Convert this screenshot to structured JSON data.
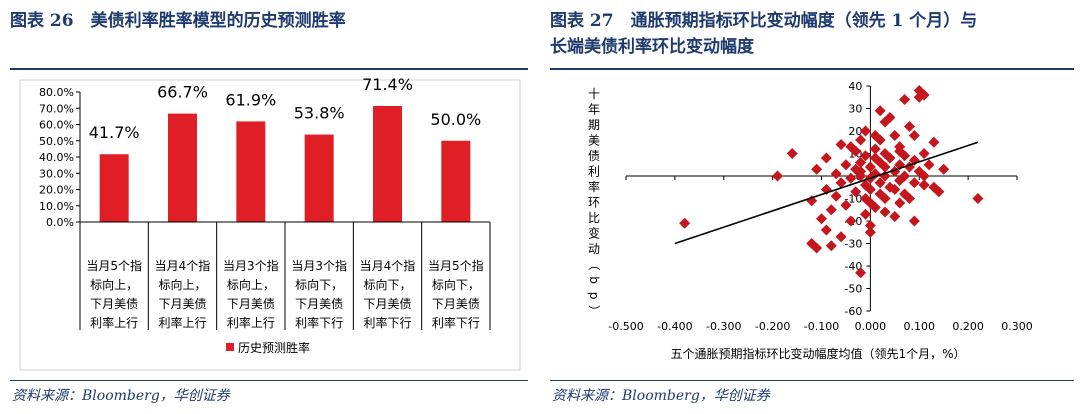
{
  "left": {
    "title": "图表 26　美债利率胜率模型的历史预测胜率",
    "source": "资料来源：Bloomberg，华创证券",
    "chart_data": {
      "type": "bar",
      "categories": [
        [
          "当月5个指",
          "标向上，",
          "下月美债",
          "利率上行"
        ],
        [
          "当月4个指",
          "标向上，",
          "下月美债",
          "利率上行"
        ],
        [
          "当月3个指",
          "标向上，",
          "下月美债",
          "利率上行"
        ],
        [
          "当月3个指",
          "标向下，",
          "下月美债",
          "利率下行"
        ],
        [
          "当月4个指",
          "标向下，",
          "下月美债",
          "利率下行"
        ],
        [
          "当月5个指",
          "标向下，",
          "下月美债",
          "利率下行"
        ]
      ],
      "series": [
        {
          "name": "历史预测胜率",
          "values": [
            41.7,
            66.7,
            61.9,
            53.8,
            71.4,
            50.0
          ]
        }
      ],
      "data_labels": [
        "41.7%",
        "66.7%",
        "61.9%",
        "53.8%",
        "71.4%",
        "50.0%"
      ],
      "y_ticks": [
        "0.0%",
        "10.0%",
        "20.0%",
        "30.0%",
        "40.0%",
        "50.0%",
        "60.0%",
        "70.0%",
        "80.0%"
      ],
      "ylim": [
        0,
        80
      ],
      "color": "#e01e25",
      "legend_position": "bottom"
    }
  },
  "right": {
    "title_line1": "图表 27　通胀预期指标环比变动幅度（领先 1 个月）与",
    "title_line2": "长端美债利率环比变动幅度",
    "source": "资料来源：Bloomberg，华创证券",
    "chart_data": {
      "type": "scatter",
      "xlabel": "五个通胀预期指标环比变动幅度均值（领先1个月，%）",
      "ylabel": "十年期美债利率环比变动（bp）",
      "xlim": [
        -0.5,
        0.3
      ],
      "ylim": [
        -60,
        40
      ],
      "x_ticks": [
        "-0.500",
        "-0.400",
        "-0.300",
        "-0.200",
        "-0.100",
        "0.000",
        "0.100",
        "0.200",
        "0.300"
      ],
      "y_ticks": [
        "40",
        "30",
        "20",
        "10",
        "0",
        "-10",
        "-20",
        "-30",
        "-40",
        "-50",
        "-60"
      ],
      "marker_color": "#c4161c",
      "trendline": {
        "x": [
          -0.4,
          0.22
        ],
        "y": [
          -30,
          15
        ]
      },
      "points": [
        [
          0.1,
          38
        ],
        [
          0.11,
          36
        ],
        [
          0.1,
          35
        ],
        [
          0.07,
          34
        ],
        [
          0.02,
          29
        ],
        [
          0.04,
          26
        ],
        [
          0.03,
          24
        ],
        [
          0.08,
          22
        ],
        [
          -0.01,
          20
        ],
        [
          0.01,
          18
        ],
        [
          0.05,
          18
        ],
        [
          0.09,
          18
        ],
        [
          -0.02,
          16
        ],
        [
          0.02,
          16
        ],
        [
          0.13,
          15
        ],
        [
          -0.06,
          14
        ],
        [
          -0.04,
          13
        ],
        [
          0.06,
          13
        ],
        [
          -0.16,
          10
        ],
        [
          0.01,
          12
        ],
        [
          -0.03,
          11
        ],
        [
          0.06,
          11
        ],
        [
          0.11,
          10
        ],
        [
          0.03,
          10
        ],
        [
          -0.01,
          9
        ],
        [
          0.07,
          9
        ],
        [
          -0.09,
          8
        ],
        [
          0.01,
          8
        ],
        [
          0.04,
          8
        ],
        [
          0.09,
          7
        ],
        [
          -0.02,
          6
        ],
        [
          0.02,
          6
        ],
        [
          -0.05,
          5
        ],
        [
          0.06,
          5
        ],
        [
          0.12,
          5
        ],
        [
          0.0,
          4
        ],
        [
          0.03,
          4
        ],
        [
          0.08,
          4
        ],
        [
          -0.11,
          3
        ],
        [
          0.15,
          3
        ],
        [
          -0.02,
          2
        ],
        [
          0.05,
          2
        ],
        [
          0.1,
          2
        ],
        [
          -0.07,
          1
        ],
        [
          0.01,
          1
        ],
        [
          -0.02,
          0
        ],
        [
          -0.19,
          0
        ],
        [
          0.03,
          0
        ],
        [
          0.07,
          0
        ],
        [
          -0.04,
          -1
        ],
        [
          0.0,
          -1
        ],
        [
          0.06,
          -2
        ],
        [
          -0.06,
          -3
        ],
        [
          0.02,
          -3
        ],
        [
          0.09,
          -3
        ],
        [
          -0.01,
          -4
        ],
        [
          0.04,
          -5
        ],
        [
          0.11,
          -4
        ],
        [
          -0.09,
          -6
        ],
        [
          0.0,
          -6
        ],
        [
          0.05,
          -6
        ],
        [
          -0.03,
          -7
        ],
        [
          0.02,
          -8
        ],
        [
          0.07,
          -8
        ],
        [
          0.14,
          -7
        ],
        [
          -0.07,
          -9
        ],
        [
          -0.01,
          -10
        ],
        [
          0.03,
          -10
        ],
        [
          0.08,
          -10
        ],
        [
          0.22,
          -10
        ],
        [
          -0.12,
          -11
        ],
        [
          0.0,
          -12
        ],
        [
          0.06,
          -12
        ],
        [
          -0.05,
          -13
        ],
        [
          0.01,
          -14
        ],
        [
          -0.08,
          -15
        ],
        [
          0.03,
          -16
        ],
        [
          0.09,
          -20
        ],
        [
          -0.01,
          -17
        ],
        [
          -0.1,
          -19
        ],
        [
          0.05,
          -18
        ],
        [
          -0.04,
          -20
        ],
        [
          0.0,
          -22
        ],
        [
          -0.09,
          -24
        ],
        [
          0.0,
          -25
        ],
        [
          -0.06,
          -27
        ],
        [
          -0.38,
          -21
        ],
        [
          -0.12,
          -30
        ],
        [
          -0.08,
          -31
        ],
        [
          -0.11,
          -32
        ],
        [
          -0.02,
          -43
        ],
        [
          0.13,
          -5
        ],
        [
          0.11,
          0
        ],
        [
          -0.03,
          3
        ]
      ]
    }
  }
}
